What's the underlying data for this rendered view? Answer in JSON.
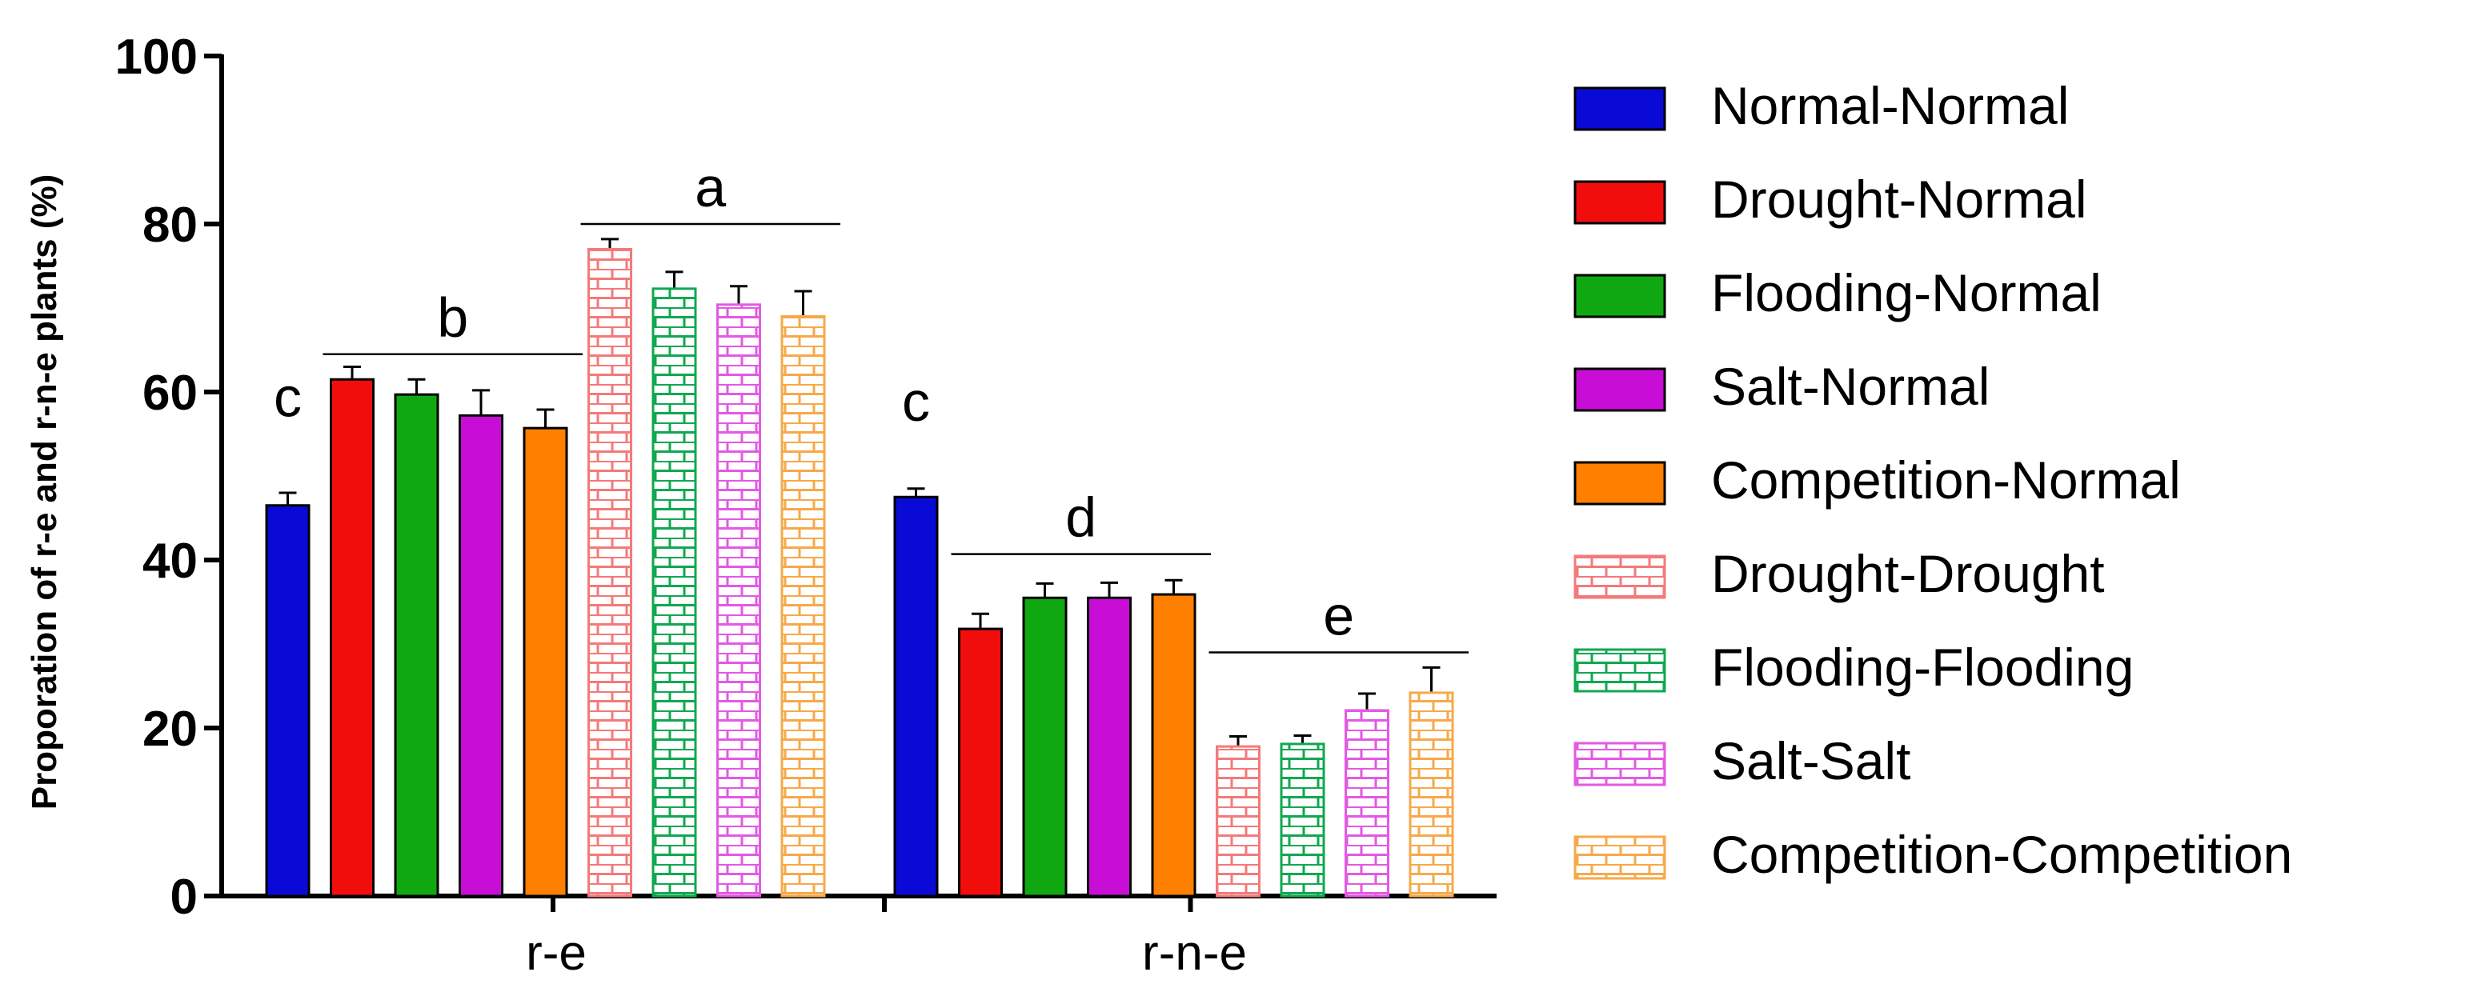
{
  "chart_data": {
    "type": "bar",
    "title": "",
    "xlabel": "",
    "ylabel": "Proporation of r-e and r-n-e plants  (%)",
    "ylim": [
      0,
      100
    ],
    "yticks": [
      0,
      20,
      40,
      60,
      80,
      100
    ],
    "categories": [
      "r-e",
      "r-n-e"
    ],
    "series": [
      {
        "name": "Normal-Normal",
        "values": [
          46.5,
          47.5
        ],
        "errors": [
          1.5,
          1.0
        ],
        "color": "#0a0ad6",
        "pattern": "solid"
      },
      {
        "name": "Drought-Normal",
        "values": [
          61.5,
          31.8
        ],
        "errors": [
          1.5,
          1.8
        ],
        "color": "#f20d0d",
        "pattern": "solid"
      },
      {
        "name": "Flooding-Normal",
        "values": [
          59.7,
          35.5
        ],
        "errors": [
          1.8,
          1.7
        ],
        "color": "#10a810",
        "pattern": "solid"
      },
      {
        "name": "Salt-Normal",
        "values": [
          57.2,
          35.5
        ],
        "errors": [
          3.0,
          1.8
        ],
        "color": "#c80ed6",
        "pattern": "solid"
      },
      {
        "name": "Competition-Normal",
        "values": [
          55.7,
          35.9
        ],
        "errors": [
          2.2,
          1.7
        ],
        "color": "#ff8000",
        "pattern": "solid"
      },
      {
        "name": "Drought-Drought",
        "values": [
          77.0,
          17.8
        ],
        "errors": [
          1.2,
          1.2
        ],
        "color": "#f47a7a",
        "pattern": "brick"
      },
      {
        "name": "Flooding-Flooding",
        "values": [
          72.3,
          18.1
        ],
        "errors": [
          2.0,
          1.0
        ],
        "color": "#10a850",
        "pattern": "brick"
      },
      {
        "name": "Salt-Salt",
        "values": [
          70.4,
          22.1
        ],
        "errors": [
          2.2,
          2.0
        ],
        "color": "#e35ae3",
        "pattern": "brick"
      },
      {
        "name": "Competition-Competition",
        "values": [
          69.0,
          24.2
        ],
        "errors": [
          3.0,
          3.0
        ],
        "color": "#f7a94a",
        "pattern": "brick"
      }
    ],
    "annotations": [
      {
        "text": "c",
        "group": "r-e",
        "span": [
          0,
          0
        ],
        "y": 55,
        "line": false
      },
      {
        "text": "b",
        "group": "r-e",
        "span": [
          1,
          4
        ],
        "y": 64.5,
        "line": true
      },
      {
        "text": "a",
        "group": "r-e",
        "span": [
          5,
          8
        ],
        "y": 80,
        "line": true
      },
      {
        "text": "c",
        "group": "r-n-e",
        "span": [
          0,
          0
        ],
        "y": 54.5,
        "line": false
      },
      {
        "text": "d",
        "group": "r-n-e",
        "span": [
          1,
          4
        ],
        "y": 40.7,
        "line": true
      },
      {
        "text": "e",
        "group": "r-n-e",
        "span": [
          5,
          8
        ],
        "y": 29,
        "line": true
      }
    ],
    "legend": "right",
    "grid": false
  }
}
